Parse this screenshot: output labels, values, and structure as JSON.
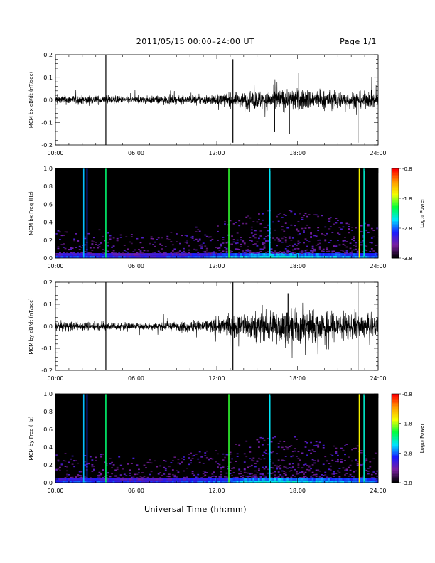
{
  "header": {
    "title": "2011/05/15  00:00–24:00 UT",
    "page": "Page 1/1"
  },
  "x_axis_title": "Universal Time (hh:mm)",
  "colorbar": {
    "label": "Log₁₀ Power",
    "ticks": [
      "-0.8",
      "-1.8",
      "-2.8",
      "-3.8"
    ],
    "range": [
      -3.8,
      -0.8
    ]
  },
  "colors": {
    "background": "#000000",
    "trace": "#000000",
    "colormap": [
      "#000000",
      "#7a1fa0",
      "#1a1aff",
      "#00e5ff",
      "#00ff3c",
      "#f5ff00",
      "#ff9a00",
      "#ff0000"
    ]
  },
  "chart_data": [
    {
      "type": "line",
      "ylabel": "MCM bx dB/dt (nT/sec)",
      "xlim": [
        0,
        24
      ],
      "ylim": [
        -0.2,
        0.2
      ],
      "x_ticks": [
        "00:00",
        "06:00",
        "12:00",
        "18:00",
        "24:00"
      ],
      "y_ticks": [
        "0.2",
        "0.1",
        "0.0",
        "-0.1",
        "-0.2"
      ],
      "noise_envelope": {
        "hours": [
          0,
          3,
          6,
          9,
          12,
          14,
          16,
          18,
          20,
          22,
          24
        ],
        "amplitude": [
          0.022,
          0.02,
          0.016,
          0.02,
          0.025,
          0.04,
          0.05,
          0.05,
          0.045,
          0.04,
          0.035
        ]
      },
      "spikes": [
        {
          "hour": 3.75,
          "value": 0.2
        },
        {
          "hour": 3.75,
          "value": -0.2
        },
        {
          "hour": 13.2,
          "value": 0.18
        },
        {
          "hour": 13.2,
          "value": -0.19
        },
        {
          "hour": 16.3,
          "value": -0.14
        },
        {
          "hour": 17.4,
          "value": -0.15
        },
        {
          "hour": 18.1,
          "value": 0.12
        },
        {
          "hour": 22.5,
          "value": -0.19
        }
      ]
    },
    {
      "type": "heatmap",
      "ylabel": "MCM bx Freq (Hz)",
      "xlim": [
        0,
        24
      ],
      "ylim": [
        0.0,
        1.0
      ],
      "x_ticks": [
        "00:00",
        "06:00",
        "12:00",
        "18:00",
        "24:00"
      ],
      "y_ticks": [
        "1.0",
        "0.8",
        "0.6",
        "0.4",
        "0.2",
        "0.0"
      ],
      "bright_lines": [
        {
          "hour": 2.1,
          "level": -2.6
        },
        {
          "hour": 2.35,
          "level": -2.9
        },
        {
          "hour": 3.75,
          "level": -2.2
        },
        {
          "hour": 12.9,
          "level": -2.0
        },
        {
          "hour": 15.95,
          "level": -2.5
        },
        {
          "hour": 22.6,
          "level": -1.6
        },
        {
          "hour": 22.95,
          "level": -2.4
        }
      ]
    },
    {
      "type": "line",
      "ylabel": "MCM by dB/dt (nT/sec)",
      "xlim": [
        0,
        24
      ],
      "ylim": [
        -0.2,
        0.2
      ],
      "x_ticks": [
        "00:00",
        "06:00",
        "12:00",
        "18:00",
        "24:00"
      ],
      "y_ticks": [
        "0.2",
        "0.1",
        "0.0",
        "-0.1",
        "-0.2"
      ],
      "noise_envelope": {
        "hours": [
          0,
          3,
          6,
          9,
          12,
          14,
          16,
          18,
          20,
          22,
          24
        ],
        "amplitude": [
          0.022,
          0.02,
          0.016,
          0.022,
          0.035,
          0.06,
          0.08,
          0.085,
          0.075,
          0.06,
          0.045
        ]
      },
      "spikes": [
        {
          "hour": 3.75,
          "value": 0.2
        },
        {
          "hour": 3.75,
          "value": -0.2
        },
        {
          "hour": 13.2,
          "value": 0.2
        },
        {
          "hour": 13.2,
          "value": -0.2
        },
        {
          "hour": 17.3,
          "value": 0.15
        },
        {
          "hour": 22.5,
          "value": 0.2
        },
        {
          "hour": 22.5,
          "value": -0.2
        }
      ]
    },
    {
      "type": "heatmap",
      "ylabel": "MCM by Freq (Hz)",
      "xlim": [
        0,
        24
      ],
      "ylim": [
        0.0,
        1.0
      ],
      "x_ticks": [
        "00:00",
        "06:00",
        "12:00",
        "18:00",
        "24:00"
      ],
      "y_ticks": [
        "1.0",
        "0.8",
        "0.6",
        "0.4",
        "0.2",
        "0.0"
      ],
      "bright_lines": [
        {
          "hour": 2.1,
          "level": -2.6
        },
        {
          "hour": 2.35,
          "level": -2.9
        },
        {
          "hour": 3.75,
          "level": -2.2
        },
        {
          "hour": 12.9,
          "level": -2.0
        },
        {
          "hour": 15.95,
          "level": -2.5
        },
        {
          "hour": 22.6,
          "level": -1.6
        },
        {
          "hour": 22.95,
          "level": -2.4
        }
      ]
    }
  ]
}
